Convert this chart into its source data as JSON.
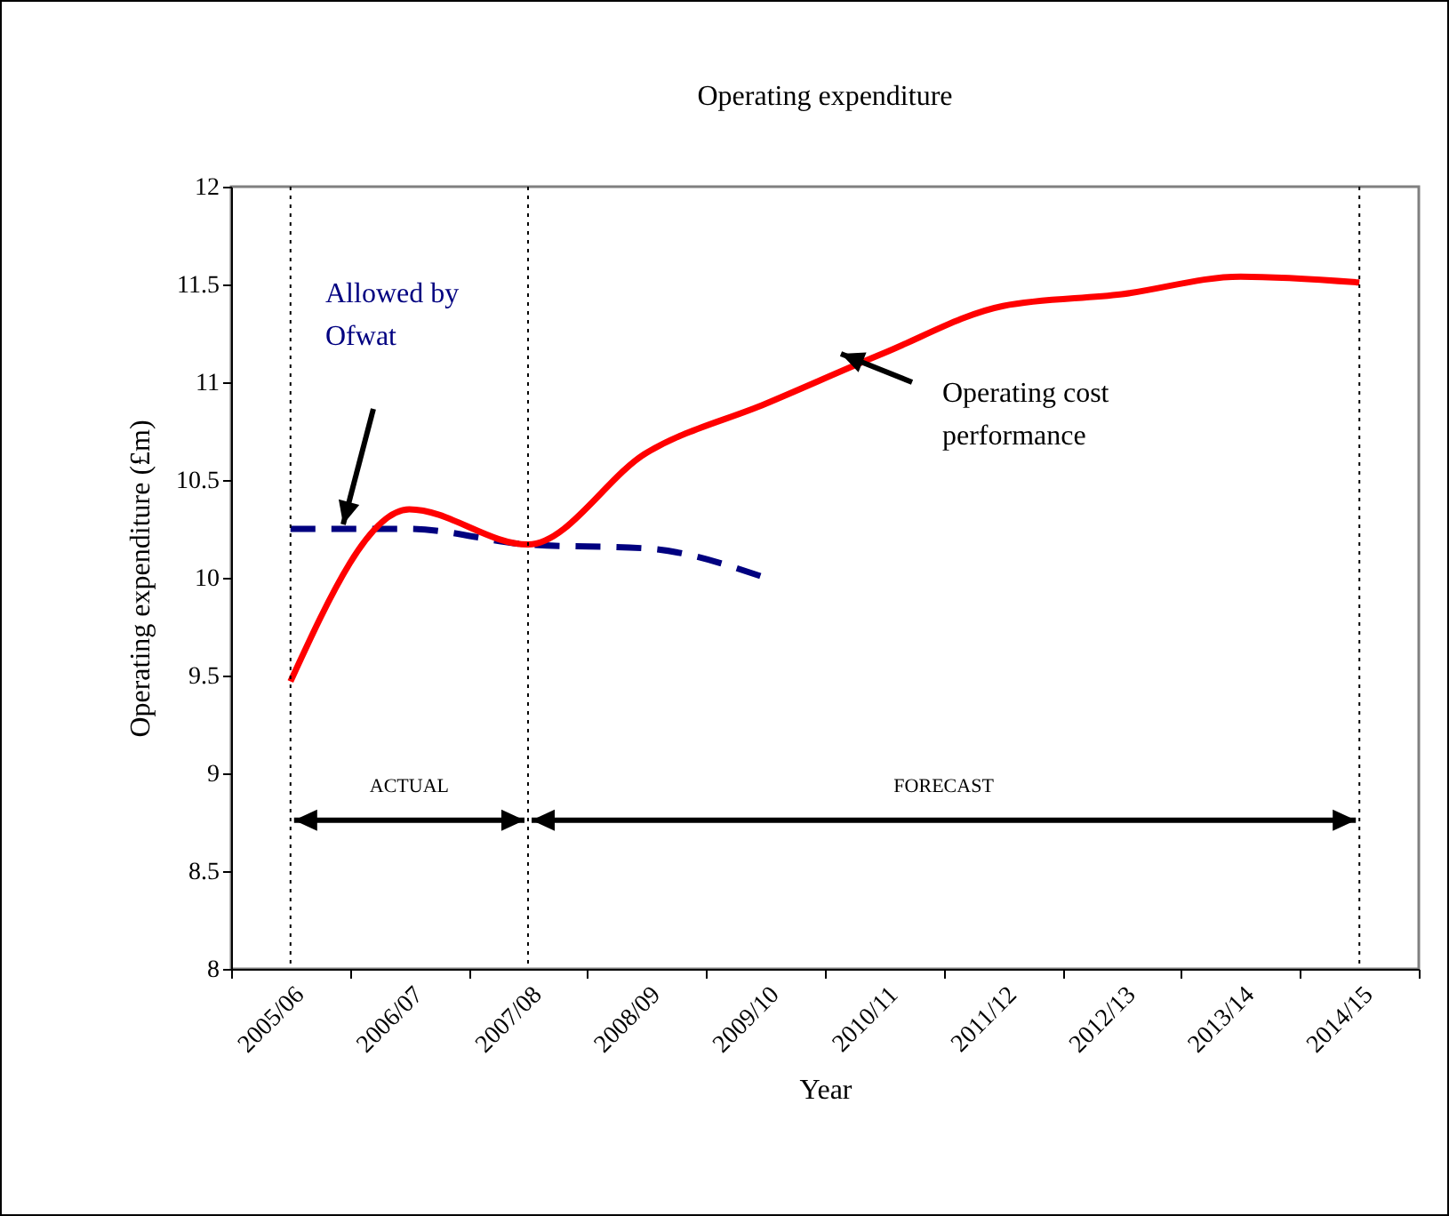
{
  "chart_data": {
    "type": "line",
    "title": "Operating expenditure",
    "xlabel": "Year",
    "ylabel": "Operating expenditure (£m)",
    "categories": [
      "2005/06",
      "2006/07",
      "2007/08",
      "2008/09",
      "2009/10",
      "2010/11",
      "2011/12",
      "2012/13",
      "2013/14",
      "2014/15"
    ],
    "series": [
      {
        "name": "Allowed by Ofwat",
        "color": "#000080",
        "line_style": "dashed",
        "values": [
          10.25,
          10.25,
          10.17,
          10.15,
          10.0,
          null,
          null,
          null,
          null,
          null
        ]
      },
      {
        "name": "Operating cost performance",
        "color": "#ff0000",
        "line_style": "solid",
        "values": [
          9.47,
          10.35,
          10.17,
          10.64,
          10.89,
          11.15,
          11.39,
          11.45,
          11.54,
          11.51
        ]
      }
    ],
    "ylim": [
      8,
      12
    ],
    "yticks": [
      8,
      8.5,
      9,
      9.5,
      10,
      10.5,
      11,
      11.5,
      12
    ],
    "ref_lines": [
      {
        "axis": "x",
        "value": "2005/06",
        "color": "#000000",
        "line_style": "dotted"
      },
      {
        "axis": "x",
        "value": "2007/08",
        "color": "#000000",
        "line_style": "dotted"
      },
      {
        "axis": "x",
        "value": "2014/15",
        "color": "#000000",
        "line_style": "dotted"
      }
    ],
    "annotations": [
      "ACTUAL",
      "FORECAST"
    ]
  }
}
